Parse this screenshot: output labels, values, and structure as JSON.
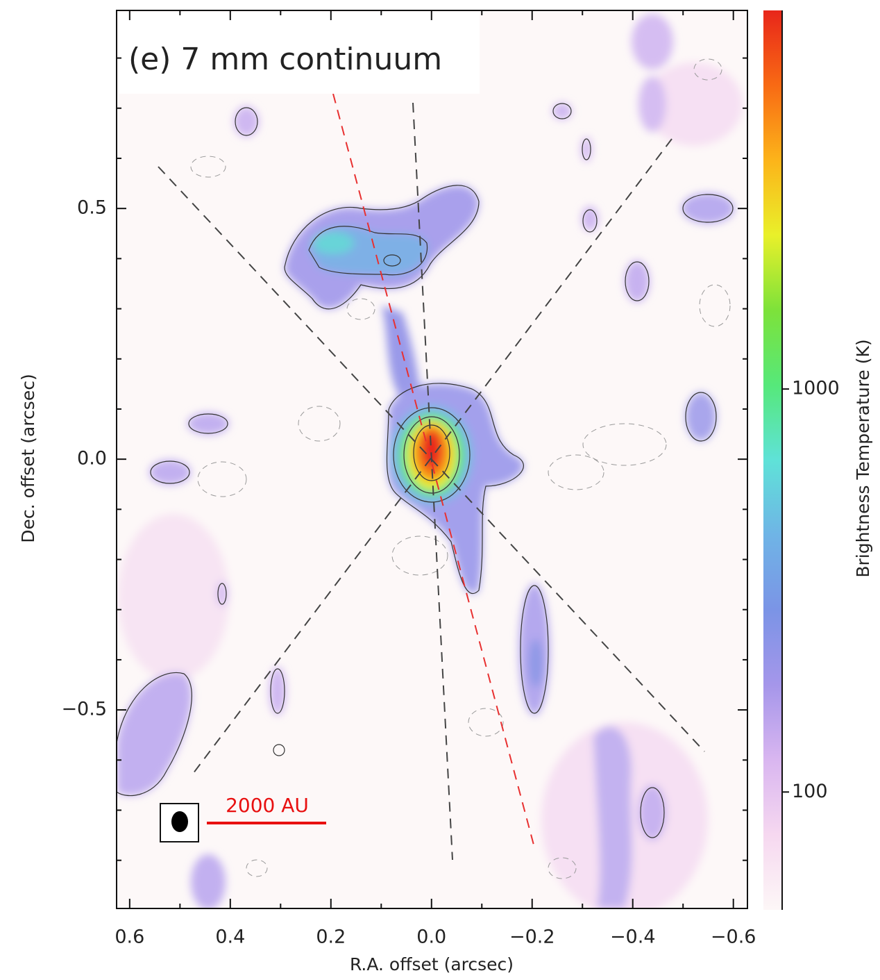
{
  "chart_data": {
    "type": "image",
    "title": "(e) 7 mm continuum",
    "x_label": "R.A. offset (arcsec)",
    "y_label": "Dec. offset (arcsec)",
    "xlim": [
      0.626,
      -0.628
    ],
    "ylim": [
      -0.896,
      0.895
    ],
    "xticks": [
      0.6,
      0.4,
      0.2,
      {
        "value": 0,
        "label": "0.0"
      },
      {
        "value": -0.2,
        "label": "−0.2"
      },
      {
        "value": -0.4,
        "label": "−0.4"
      },
      {
        "value": -0.6,
        "label": "−0.6"
      }
    ],
    "yticks": [
      {
        "value": -0.5,
        "label": "−0.5"
      },
      {
        "value": 0,
        "label": "0.0"
      },
      0.5
    ],
    "xminorticks": [
      0.5,
      0.3,
      0.1,
      -0.1,
      -0.3,
      -0.5
    ],
    "yminorticks": [
      -0.8,
      -0.7,
      -0.6,
      -0.4,
      -0.3,
      -0.2,
      -0.1,
      0.1,
      0.2,
      0.3,
      0.4,
      0.6,
      0.7,
      0.8
    ],
    "colorbar": {
      "label": "Brightness Temperature (K)",
      "scale": "log",
      "lim": [
        51,
        8700
      ],
      "ticks": [
        100,
        1000
      ],
      "colormap": [
        "#fdf7f7",
        "#f6d8f0",
        "#d9b6f0",
        "#a596ea",
        "#7b94e6",
        "#6fb4e6",
        "#5fe2d8",
        "#56e87a",
        "#7de23a",
        "#e9f02a",
        "#fcb41a",
        "#f86a14",
        "#e8261a"
      ]
    },
    "scale_bar_label": "2000 AU"
  }
}
